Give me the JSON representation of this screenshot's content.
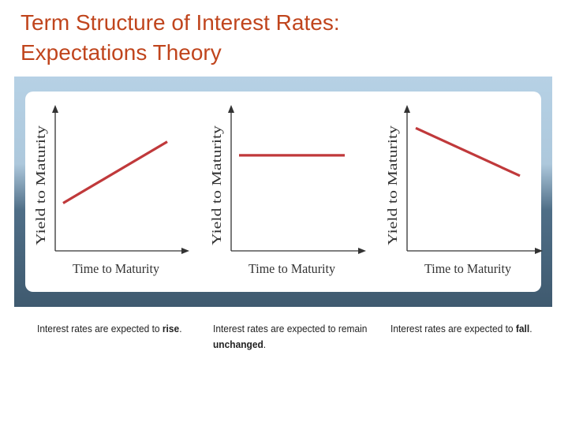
{
  "title": {
    "line1": "Term Structure of Interest Rates:",
    "line2": "Expectations Theory"
  },
  "colors": {
    "title": "#c0451d",
    "line": "#c0393b",
    "axis": "#333333"
  },
  "chart_data": [
    {
      "type": "line",
      "xlabel": "Time to Maturity",
      "ylabel": "Yield to Maturity",
      "trend": "rise",
      "x": [
        0,
        1
      ],
      "y": [
        0.35,
        0.8
      ],
      "ylim": [
        0,
        1
      ],
      "caption": {
        "prefix": "Interest rates are expected to ",
        "emphasis": "rise",
        "suffix": "."
      }
    },
    {
      "type": "line",
      "xlabel": "Time to Maturity",
      "ylabel": "Yield to Maturity",
      "trend": "unchanged",
      "x": [
        0,
        1
      ],
      "y": [
        0.7,
        0.7
      ],
      "ylim": [
        0,
        1
      ],
      "caption": {
        "prefix": "Interest rates are expected to remain ",
        "emphasis": "unchanged",
        "suffix": "."
      }
    },
    {
      "type": "line",
      "xlabel": "Time to Maturity",
      "ylabel": "Yield to Maturity",
      "trend": "fall",
      "x": [
        0,
        1
      ],
      "y": [
        0.9,
        0.55
      ],
      "ylim": [
        0,
        1
      ],
      "caption": {
        "prefix": "Interest rates are expected to ",
        "emphasis": "fall",
        "suffix": "."
      }
    }
  ]
}
